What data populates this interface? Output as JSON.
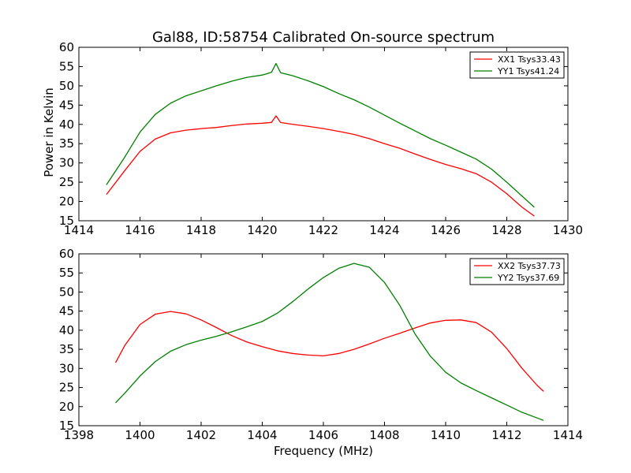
{
  "chart_data": [
    {
      "type": "line",
      "title": "Gal88, ID:58754 Calibrated On-source spectrum",
      "xlabel": "",
      "ylabel": "Power in Kelvin",
      "xlim": [
        1414,
        1430
      ],
      "ylim": [
        15,
        60
      ],
      "xticks": [
        "1414",
        "1416",
        "1418",
        "1420",
        "1422",
        "1424",
        "1426",
        "1428",
        "1430"
      ],
      "yticks": [
        "15",
        "20",
        "25",
        "30",
        "35",
        "40",
        "45",
        "50",
        "55",
        "60"
      ],
      "grid": false,
      "legend_position": "top-right",
      "series": [
        {
          "name": "XX1 Tsys33.43",
          "color": "#ff0000",
          "x": [
            1414.9,
            1415.5,
            1416.0,
            1416.5,
            1417.0,
            1417.5,
            1418.0,
            1418.5,
            1419.0,
            1419.5,
            1420.0,
            1420.3,
            1420.45,
            1420.6,
            1421.0,
            1421.5,
            1422.0,
            1422.5,
            1423.0,
            1423.5,
            1424.0,
            1424.5,
            1425.0,
            1425.5,
            1426.0,
            1426.5,
            1427.0,
            1427.5,
            1428.0,
            1428.5,
            1428.9
          ],
          "y": [
            21.8,
            28.0,
            33.0,
            36.2,
            37.8,
            38.5,
            38.9,
            39.2,
            39.7,
            40.1,
            40.3,
            40.5,
            42.2,
            40.5,
            40.0,
            39.5,
            38.9,
            38.2,
            37.4,
            36.3,
            35.0,
            33.8,
            32.3,
            30.9,
            29.6,
            28.5,
            27.2,
            25.0,
            22.0,
            18.5,
            16.2
          ]
        },
        {
          "name": "YY1 Tsys41.24",
          "color": "#008000",
          "x": [
            1414.9,
            1415.5,
            1416.0,
            1416.5,
            1417.0,
            1417.5,
            1418.0,
            1418.5,
            1419.0,
            1419.5,
            1420.0,
            1420.3,
            1420.45,
            1420.6,
            1421.0,
            1421.5,
            1422.0,
            1422.5,
            1423.0,
            1423.5,
            1424.0,
            1424.5,
            1425.0,
            1425.5,
            1426.0,
            1426.5,
            1427.0,
            1427.5,
            1428.0,
            1428.5,
            1428.9
          ],
          "y": [
            24.3,
            31.5,
            38.0,
            42.6,
            45.5,
            47.4,
            48.7,
            50.0,
            51.2,
            52.2,
            52.8,
            53.5,
            55.8,
            53.4,
            52.6,
            51.3,
            49.8,
            48.0,
            46.4,
            44.5,
            42.4,
            40.3,
            38.3,
            36.3,
            34.6,
            32.8,
            31.0,
            28.4,
            25.0,
            21.4,
            18.5
          ]
        }
      ]
    },
    {
      "type": "line",
      "title": "",
      "xlabel": "Frequency (MHz)",
      "ylabel": "",
      "xlim": [
        1398,
        1414
      ],
      "ylim": [
        15,
        60
      ],
      "xticks": [
        "1398",
        "1400",
        "1402",
        "1404",
        "1406",
        "1408",
        "1410",
        "1412",
        "1414"
      ],
      "yticks": [
        "15",
        "20",
        "25",
        "30",
        "35",
        "40",
        "45",
        "50",
        "55",
        "60"
      ],
      "grid": false,
      "legend_position": "top-right",
      "series": [
        {
          "name": "XX2 Tsys37.73",
          "color": "#ff0000",
          "x": [
            1399.2,
            1399.5,
            1400.0,
            1400.5,
            1401.0,
            1401.5,
            1402.0,
            1402.5,
            1403.0,
            1403.5,
            1404.0,
            1404.5,
            1405.0,
            1405.5,
            1406.0,
            1406.5,
            1407.0,
            1407.5,
            1408.0,
            1408.5,
            1409.0,
            1409.5,
            1410.0,
            1410.5,
            1411.0,
            1411.5,
            1412.0,
            1412.5,
            1413.0,
            1413.2
          ],
          "y": [
            31.5,
            36.0,
            41.5,
            44.2,
            44.9,
            44.3,
            42.7,
            40.7,
            38.6,
            36.9,
            35.7,
            34.6,
            33.9,
            33.5,
            33.3,
            33.9,
            35.0,
            36.4,
            37.9,
            39.2,
            40.6,
            41.9,
            42.6,
            42.7,
            42.0,
            39.5,
            35.2,
            30.0,
            25.5,
            24.0
          ]
        },
        {
          "name": "YY2 Tsys37.69",
          "color": "#008000",
          "x": [
            1399.2,
            1399.5,
            1400.0,
            1400.5,
            1401.0,
            1401.5,
            1402.0,
            1402.5,
            1403.0,
            1403.5,
            1404.0,
            1404.5,
            1405.0,
            1405.5,
            1406.0,
            1406.5,
            1407.0,
            1407.5,
            1408.0,
            1408.5,
            1409.0,
            1409.5,
            1410.0,
            1410.5,
            1411.0,
            1411.5,
            1412.0,
            1412.5,
            1413.0,
            1413.2
          ],
          "y": [
            21.0,
            23.5,
            28.0,
            31.8,
            34.5,
            36.2,
            37.4,
            38.4,
            39.6,
            40.9,
            42.3,
            44.5,
            47.5,
            50.8,
            53.8,
            56.2,
            57.5,
            56.5,
            52.5,
            46.5,
            39.0,
            33.2,
            29.0,
            26.2,
            24.2,
            22.3,
            20.4,
            18.5,
            17.0,
            16.4
          ]
        }
      ]
    }
  ]
}
